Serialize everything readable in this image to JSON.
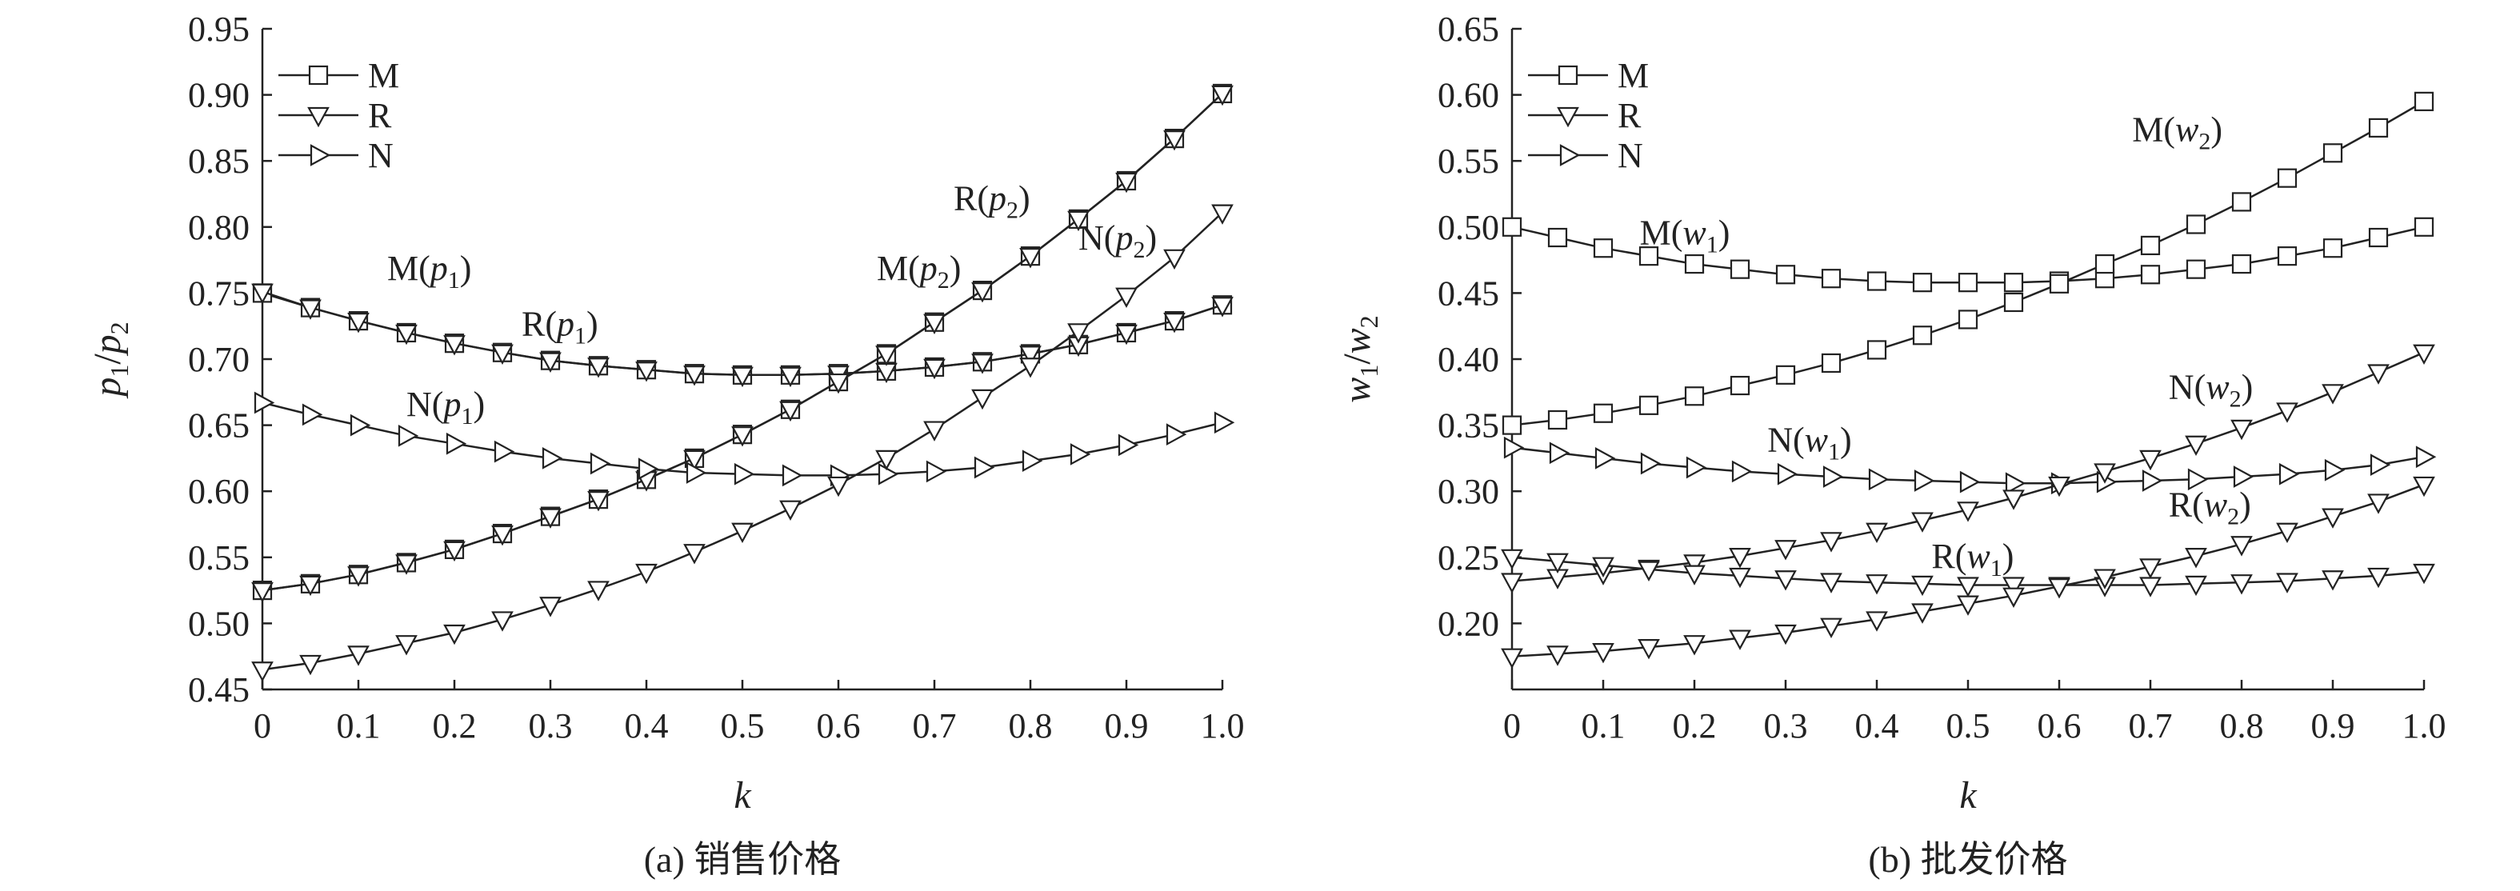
{
  "chart_data": [
    {
      "type": "line",
      "caption": "(a) 销售价格",
      "xlabel": "k",
      "ylabel": {
        "base1": "p",
        "sub1": "1",
        "sep": "/",
        "base2": "p",
        "sub2": "2"
      },
      "xlim": [
        0,
        1
      ],
      "ylim": [
        0.45,
        0.95
      ],
      "xticks": [
        0,
        0.1,
        0.2,
        0.3,
        0.4,
        0.5,
        0.6,
        0.7,
        0.8,
        0.9,
        1.0
      ],
      "xtick_labels": [
        "0",
        "0.1",
        "0.2",
        "0.3",
        "0.4",
        "0.5",
        "0.6",
        "0.7",
        "0.8",
        "0.9",
        "1.0"
      ],
      "yticks": [
        0.45,
        0.5,
        0.55,
        0.6,
        0.65,
        0.7,
        0.75,
        0.8,
        0.85,
        0.9,
        0.95
      ],
      "ytick_labels": [
        "0.45",
        "0.50",
        "0.55",
        "0.60",
        "0.65",
        "0.70",
        "0.75",
        "0.80",
        "0.85",
        "0.90",
        "0.95"
      ],
      "legend": [
        {
          "label": "M",
          "marker": "square"
        },
        {
          "label": "R",
          "marker": "triangle-down"
        },
        {
          "label": "N",
          "marker": "triangle-right"
        }
      ],
      "x": [
        0,
        0.05,
        0.1,
        0.15,
        0.2,
        0.25,
        0.3,
        0.35,
        0.4,
        0.45,
        0.5,
        0.55,
        0.6,
        0.65,
        0.7,
        0.75,
        0.8,
        0.85,
        0.9,
        0.95,
        1.0
      ],
      "series": [
        {
          "name": "M(p1)",
          "marker": "square",
          "values": [
            0.75,
            0.739,
            0.729,
            0.72,
            0.712,
            0.705,
            0.699,
            0.695,
            0.692,
            0.689,
            0.688,
            0.688,
            0.689,
            0.691,
            0.694,
            0.698,
            0.704,
            0.711,
            0.72,
            0.729,
            0.741
          ]
        },
        {
          "name": "M(p2)",
          "marker": "square",
          "values": [
            0.525,
            0.53,
            0.537,
            0.546,
            0.556,
            0.568,
            0.581,
            0.594,
            0.609,
            0.625,
            0.643,
            0.662,
            0.683,
            0.704,
            0.728,
            0.752,
            0.778,
            0.806,
            0.835,
            0.867,
            0.901
          ]
        },
        {
          "name": "R(p1)",
          "marker": "triangle-down",
          "values": [
            0.751,
            0.739,
            0.729,
            0.72,
            0.712,
            0.705,
            0.699,
            0.695,
            0.692,
            0.689,
            0.688,
            0.688,
            0.689,
            0.691,
            0.694,
            0.698,
            0.704,
            0.711,
            0.72,
            0.729,
            0.741
          ]
        },
        {
          "name": "R(p2)",
          "marker": "triangle-down",
          "values": [
            0.525,
            0.53,
            0.537,
            0.546,
            0.556,
            0.568,
            0.581,
            0.594,
            0.609,
            0.625,
            0.643,
            0.662,
            0.683,
            0.704,
            0.728,
            0.752,
            0.778,
            0.806,
            0.835,
            0.867,
            0.901
          ]
        },
        {
          "name": "N(p1)",
          "marker": "triangle-right",
          "values": [
            0.667,
            0.658,
            0.65,
            0.642,
            0.636,
            0.63,
            0.625,
            0.621,
            0.617,
            0.614,
            0.613,
            0.612,
            0.612,
            0.613,
            0.615,
            0.618,
            0.623,
            0.628,
            0.635,
            0.643,
            0.652
          ]
        },
        {
          "name": "N(p2)",
          "marker": "triangle-down",
          "values": [
            0.465,
            0.47,
            0.477,
            0.485,
            0.493,
            0.503,
            0.514,
            0.526,
            0.539,
            0.554,
            0.57,
            0.587,
            0.605,
            0.625,
            0.647,
            0.671,
            0.695,
            0.721,
            0.748,
            0.777,
            0.811
          ]
        }
      ],
      "annotations": [
        {
          "base": "M(p",
          "sub": "1",
          "end": ")",
          "x": 0.13,
          "y": 0.76
        },
        {
          "base": "R(p",
          "sub": "1",
          "end": ")",
          "x": 0.27,
          "y": 0.718
        },
        {
          "base": "N(p",
          "sub": "1",
          "end": ")",
          "x": 0.15,
          "y": 0.657
        },
        {
          "base": "R(p",
          "sub": "2",
          "end": ")",
          "x": 0.72,
          "y": 0.813
        },
        {
          "base": "M(p",
          "sub": "2",
          "end": ")",
          "x": 0.64,
          "y": 0.76
        },
        {
          "base": "N(p",
          "sub": "2",
          "end": ")",
          "x": 0.85,
          "y": 0.783
        }
      ]
    },
    {
      "type": "line",
      "caption": "(b) 批发价格",
      "xlabel": "k",
      "ylabel": {
        "base1": "w",
        "sub1": "1",
        "sep": "/",
        "base2": "w",
        "sub2": "2"
      },
      "xlim": [
        0,
        1
      ],
      "ylim": [
        0.15,
        0.65
      ],
      "xticks": [
        0,
        0.1,
        0.2,
        0.3,
        0.4,
        0.5,
        0.6,
        0.7,
        0.8,
        0.9,
        1.0
      ],
      "xtick_labels": [
        "0",
        "0.1",
        "0.2",
        "0.3",
        "0.4",
        "0.5",
        "0.6",
        "0.7",
        "0.8",
        "0.9",
        "1.0"
      ],
      "yticks": [
        0.2,
        0.25,
        0.3,
        0.35,
        0.4,
        0.45,
        0.5,
        0.55,
        0.6,
        0.65
      ],
      "ytick_labels": [
        "0.20",
        "0.25",
        "0.30",
        "0.35",
        "0.40",
        "0.45",
        "0.50",
        "0.55",
        "0.60",
        "0.65"
      ],
      "legend": [
        {
          "label": "M",
          "marker": "square"
        },
        {
          "label": "R",
          "marker": "triangle-down"
        },
        {
          "label": "N",
          "marker": "triangle-right"
        }
      ],
      "x": [
        0,
        0.05,
        0.1,
        0.15,
        0.2,
        0.25,
        0.3,
        0.35,
        0.4,
        0.45,
        0.5,
        0.55,
        0.6,
        0.65,
        0.7,
        0.75,
        0.8,
        0.85,
        0.9,
        0.95,
        1.0
      ],
      "series": [
        {
          "name": "M(w1)",
          "marker": "square",
          "values": [
            0.5,
            0.492,
            0.484,
            0.478,
            0.472,
            0.468,
            0.464,
            0.461,
            0.459,
            0.458,
            0.458,
            0.458,
            0.459,
            0.461,
            0.464,
            0.468,
            0.472,
            0.478,
            0.484,
            0.492,
            0.5
          ]
        },
        {
          "name": "M(w2)",
          "marker": "square",
          "values": [
            0.35,
            0.354,
            0.359,
            0.365,
            0.372,
            0.38,
            0.388,
            0.397,
            0.407,
            0.418,
            0.43,
            0.443,
            0.457,
            0.472,
            0.486,
            0.502,
            0.519,
            0.537,
            0.556,
            0.575,
            0.595
          ]
        },
        {
          "name": "N(w1)",
          "marker": "triangle-right",
          "values": [
            0.333,
            0.329,
            0.325,
            0.321,
            0.318,
            0.315,
            0.313,
            0.311,
            0.309,
            0.308,
            0.307,
            0.306,
            0.306,
            0.307,
            0.308,
            0.309,
            0.311,
            0.313,
            0.316,
            0.32,
            0.326
          ]
        },
        {
          "name": "N(w2)",
          "marker": "triangle-down",
          "values": [
            0.232,
            0.235,
            0.238,
            0.242,
            0.246,
            0.251,
            0.257,
            0.263,
            0.27,
            0.278,
            0.286,
            0.295,
            0.305,
            0.315,
            0.325,
            0.336,
            0.348,
            0.361,
            0.375,
            0.39,
            0.405
          ]
        },
        {
          "name": "R(w1)",
          "marker": "triangle-down",
          "values": [
            0.25,
            0.247,
            0.244,
            0.241,
            0.238,
            0.236,
            0.234,
            0.232,
            0.231,
            0.23,
            0.229,
            0.229,
            0.229,
            0.229,
            0.229,
            0.23,
            0.231,
            0.232,
            0.234,
            0.236,
            0.239
          ]
        },
        {
          "name": "R(w2)",
          "marker": "triangle-down",
          "values": [
            0.175,
            0.177,
            0.179,
            0.182,
            0.185,
            0.189,
            0.193,
            0.198,
            0.203,
            0.209,
            0.215,
            0.221,
            0.228,
            0.235,
            0.243,
            0.251,
            0.26,
            0.27,
            0.281,
            0.292,
            0.305
          ]
        }
      ],
      "annotations": [
        {
          "base": "M(w",
          "sub": "1",
          "end": ")",
          "x": 0.14,
          "y": 0.487
        },
        {
          "base": "M(w",
          "sub": "2",
          "end": ")",
          "x": 0.68,
          "y": 0.565
        },
        {
          "base": "N(w",
          "sub": "1",
          "end": ")",
          "x": 0.28,
          "y": 0.33
        },
        {
          "base": "N(w",
          "sub": "2",
          "end": ")",
          "x": 0.72,
          "y": 0.37
        },
        {
          "base": "R(w",
          "sub": "2",
          "end": ")",
          "x": 0.72,
          "y": 0.281
        },
        {
          "base": "R(w",
          "sub": "1",
          "end": ")",
          "x": 0.46,
          "y": 0.242
        }
      ]
    }
  ]
}
